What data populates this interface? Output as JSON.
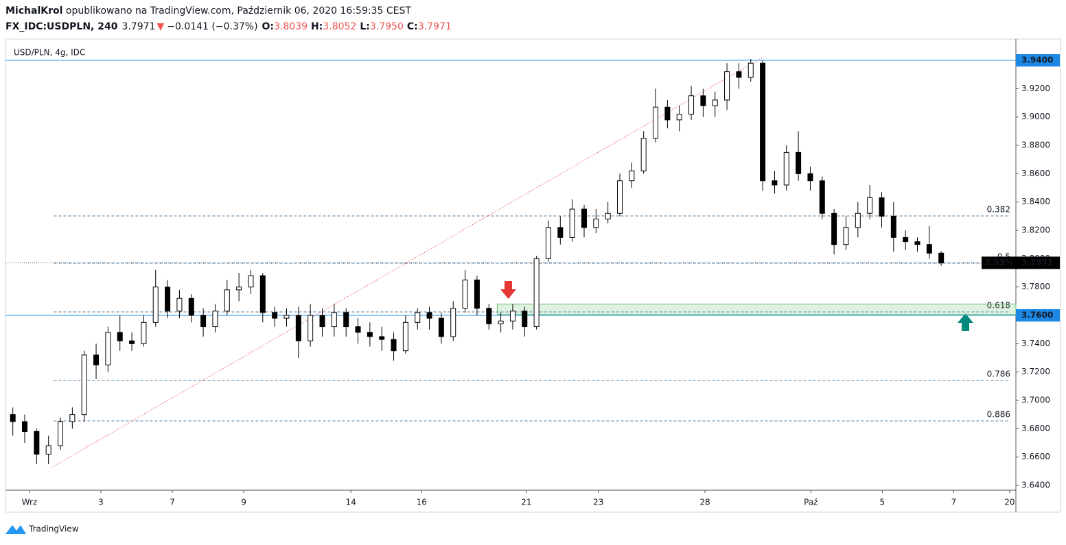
{
  "header": {
    "author": "MichalKrol",
    "published": " opublikowano na TradingView.com, Październik 06, 2020 16:59:35 CEST",
    "symbol": "FX_IDC:USDPLN, 240",
    "price": "3.7971",
    "arrow": "▼",
    "change": "−0.0141 (−0.37%)",
    "o_label": "O:",
    "o": "3.8039",
    "h_label": "H:",
    "h": "3.8052",
    "l_label": "L:",
    "l": "3.7950",
    "c_label": "C:",
    "c": "3.7971"
  },
  "footer": {
    "brand": "TradingView"
  },
  "chart_data": {
    "type": "candlestick",
    "title": "USD/PLN, 4g, IDC",
    "xlim": [
      -0.23,
      169.55
    ],
    "xticks": [
      {
        "value": 3.8,
        "label": "Wrz"
      },
      {
        "value": 15.8,
        "label": "3"
      },
      {
        "value": 27.8,
        "label": "7"
      },
      {
        "value": 39.8,
        "label": "9"
      },
      {
        "value": 57.8,
        "label": "14"
      },
      {
        "value": 69.7,
        "label": "16"
      },
      {
        "value": 87.3,
        "label": "21"
      },
      {
        "value": 99.4,
        "label": "23"
      },
      {
        "value": 117.3,
        "label": "28"
      },
      {
        "value": 135.1,
        "label": "Paź"
      },
      {
        "value": 147.1,
        "label": "5"
      },
      {
        "value": 159.1,
        "label": "7"
      },
      {
        "value": 168.5,
        "label": "20"
      }
    ],
    "ylim": [
      3.6366,
      3.9439
    ],
    "yticks": [
      {
        "value": 3.64,
        "label": "3.6400"
      },
      {
        "value": 3.66,
        "label": "3.6600"
      },
      {
        "value": 3.68,
        "label": "3.6800"
      },
      {
        "value": 3.7,
        "label": "3.7000"
      },
      {
        "value": 3.72,
        "label": "3.7200"
      },
      {
        "value": 3.74,
        "label": "3.7400"
      },
      {
        "value": 3.78,
        "label": "3.7800"
      },
      {
        "value": 3.8,
        "label": "3.8000"
      },
      {
        "value": 3.82,
        "label": "3.8200"
      },
      {
        "value": 3.84,
        "label": "3.8400"
      },
      {
        "value": 3.86,
        "label": "3.8600"
      },
      {
        "value": 3.88,
        "label": "3.8800"
      },
      {
        "value": 3.9,
        "label": "3.9000"
      },
      {
        "value": 3.92,
        "label": "3.9200"
      }
    ],
    "grid": false,
    "up_color": "#ffffff",
    "down_color": "#000000",
    "wick_color": "#000000",
    "x": [
      1,
      3,
      5,
      7,
      9,
      11,
      13,
      15,
      17,
      19,
      21,
      23,
      25,
      27,
      29,
      31,
      33,
      35,
      37,
      39,
      41,
      43,
      45,
      47,
      49,
      51,
      53,
      55,
      57,
      59,
      61,
      63,
      65,
      67,
      69,
      71,
      73,
      75,
      77,
      79,
      81,
      83,
      85,
      87,
      89,
      91,
      93,
      95,
      97,
      99,
      101,
      103,
      105,
      107,
      109,
      111,
      113,
      115,
      117,
      119,
      121,
      123,
      125,
      127,
      129,
      131,
      133,
      135,
      137,
      139,
      141,
      143,
      145,
      147,
      149,
      151,
      153,
      155,
      157
    ],
    "ohlc": [
      [
        3.69,
        3.695,
        3.675,
        3.685
      ],
      [
        3.685,
        3.69,
        3.67,
        3.678
      ],
      [
        3.678,
        3.68,
        3.655,
        3.662
      ],
      [
        3.662,
        3.675,
        3.655,
        3.668
      ],
      [
        3.668,
        3.688,
        3.665,
        3.685
      ],
      [
        3.685,
        3.695,
        3.68,
        3.69
      ],
      [
        3.69,
        3.735,
        3.685,
        3.732
      ],
      [
        3.732,
        3.74,
        3.715,
        3.725
      ],
      [
        3.725,
        3.752,
        3.72,
        3.748
      ],
      [
        3.748,
        3.76,
        3.735,
        3.742
      ],
      [
        3.742,
        3.748,
        3.735,
        3.74
      ],
      [
        3.74,
        3.76,
        3.738,
        3.755
      ],
      [
        3.755,
        3.792,
        3.752,
        3.78
      ],
      [
        3.78,
        3.785,
        3.758,
        3.763
      ],
      [
        3.763,
        3.778,
        3.758,
        3.772
      ],
      [
        3.772,
        3.775,
        3.755,
        3.76
      ],
      [
        3.76,
        3.765,
        3.745,
        3.752
      ],
      [
        3.752,
        3.768,
        3.748,
        3.763
      ],
      [
        3.763,
        3.785,
        3.76,
        3.778
      ],
      [
        3.778,
        3.79,
        3.77,
        3.78
      ],
      [
        3.78,
        3.792,
        3.775,
        3.788
      ],
      [
        3.788,
        3.79,
        3.755,
        3.762
      ],
      [
        3.762,
        3.766,
        3.752,
        3.758
      ],
      [
        3.758,
        3.765,
        3.752,
        3.76
      ],
      [
        3.76,
        3.766,
        3.73,
        3.742
      ],
      [
        3.742,
        3.768,
        3.738,
        3.76
      ],
      [
        3.76,
        3.765,
        3.745,
        3.752
      ],
      [
        3.752,
        3.768,
        3.745,
        3.762
      ],
      [
        3.762,
        3.765,
        3.745,
        3.752
      ],
      [
        3.752,
        3.758,
        3.74,
        3.748
      ],
      [
        3.748,
        3.755,
        3.738,
        3.745
      ],
      [
        3.745,
        3.752,
        3.735,
        3.743
      ],
      [
        3.743,
        3.748,
        3.728,
        3.735
      ],
      [
        3.735,
        3.76,
        3.733,
        3.755
      ],
      [
        3.755,
        3.765,
        3.75,
        3.762
      ],
      [
        3.762,
        3.766,
        3.75,
        3.758
      ],
      [
        3.758,
        3.762,
        3.74,
        3.745
      ],
      [
        3.745,
        3.77,
        3.742,
        3.765
      ],
      [
        3.765,
        3.792,
        3.762,
        3.785
      ],
      [
        3.785,
        3.788,
        3.76,
        3.765
      ],
      [
        3.765,
        3.768,
        3.75,
        3.754
      ],
      [
        3.754,
        3.762,
        3.748,
        3.756
      ],
      [
        3.756,
        3.768,
        3.75,
        3.763
      ],
      [
        3.763,
        3.766,
        3.745,
        3.752
      ],
      [
        3.752,
        3.802,
        3.75,
        3.8
      ],
      [
        3.8,
        3.827,
        3.798,
        3.822
      ],
      [
        3.822,
        3.83,
        3.81,
        3.815
      ],
      [
        3.815,
        3.842,
        3.812,
        3.835
      ],
      [
        3.835,
        3.838,
        3.815,
        3.822
      ],
      [
        3.822,
        3.835,
        3.818,
        3.828
      ],
      [
        3.828,
        3.84,
        3.825,
        3.832
      ],
      [
        3.832,
        3.86,
        3.83,
        3.855
      ],
      [
        3.855,
        3.868,
        3.85,
        3.862
      ],
      [
        3.862,
        3.89,
        3.86,
        3.885
      ],
      [
        3.885,
        3.92,
        3.882,
        3.907
      ],
      [
        3.907,
        3.912,
        3.892,
        3.898
      ],
      [
        3.898,
        3.908,
        3.89,
        3.902
      ],
      [
        3.902,
        3.922,
        3.898,
        3.915
      ],
      [
        3.915,
        3.92,
        3.9,
        3.908
      ],
      [
        3.908,
        3.918,
        3.9,
        3.912
      ],
      [
        3.912,
        3.938,
        3.905,
        3.932
      ],
      [
        3.932,
        3.938,
        3.92,
        3.928
      ],
      [
        3.928,
        3.941,
        3.925,
        3.938
      ],
      [
        3.938,
        3.94,
        3.848,
        3.855
      ],
      [
        3.855,
        3.862,
        3.846,
        3.852
      ],
      [
        3.852,
        3.88,
        3.848,
        3.875
      ],
      [
        3.875,
        3.89,
        3.855,
        3.86
      ],
      [
        3.86,
        3.865,
        3.848,
        3.855
      ],
      [
        3.855,
        3.858,
        3.828,
        3.832
      ],
      [
        3.832,
        3.835,
        3.803,
        3.81
      ],
      [
        3.81,
        3.83,
        3.806,
        3.822
      ],
      [
        3.822,
        3.84,
        3.815,
        3.832
      ],
      [
        3.832,
        3.852,
        3.828,
        3.843
      ],
      [
        3.843,
        3.847,
        3.822,
        3.83
      ],
      [
        3.83,
        3.84,
        3.805,
        3.815
      ],
      [
        3.815,
        3.82,
        3.806,
        3.812
      ],
      [
        3.812,
        3.815,
        3.805,
        3.81
      ],
      [
        3.81,
        3.823,
        3.8,
        3.8039
      ],
      [
        3.8039,
        3.8052,
        3.795,
        3.7971
      ]
    ],
    "hlines": [
      {
        "value": 3.94,
        "label": "3.9400"
      },
      {
        "value": 3.76,
        "label": "3.7600"
      }
    ],
    "last": {
      "value": 3.7971,
      "label": "3.7971",
      "change_label": "2.93%"
    },
    "fib_levels": [
      {
        "value": 3.8302,
        "label": "0.382"
      },
      {
        "value": 3.7968,
        "label": "0.5"
      },
      {
        "value": 3.7624,
        "label": "0.618"
      },
      {
        "value": 3.714,
        "label": "0.786"
      },
      {
        "value": 3.6855,
        "label": "0.886"
      }
    ],
    "fib_start_x": 7.9,
    "trendline": {
      "x": [
        7.5,
        126.9
      ],
      "y": [
        3.6526,
        3.9418
      ]
    },
    "zone": {
      "x_start": 82.4,
      "y": [
        3.7605,
        3.768
      ]
    }
  }
}
